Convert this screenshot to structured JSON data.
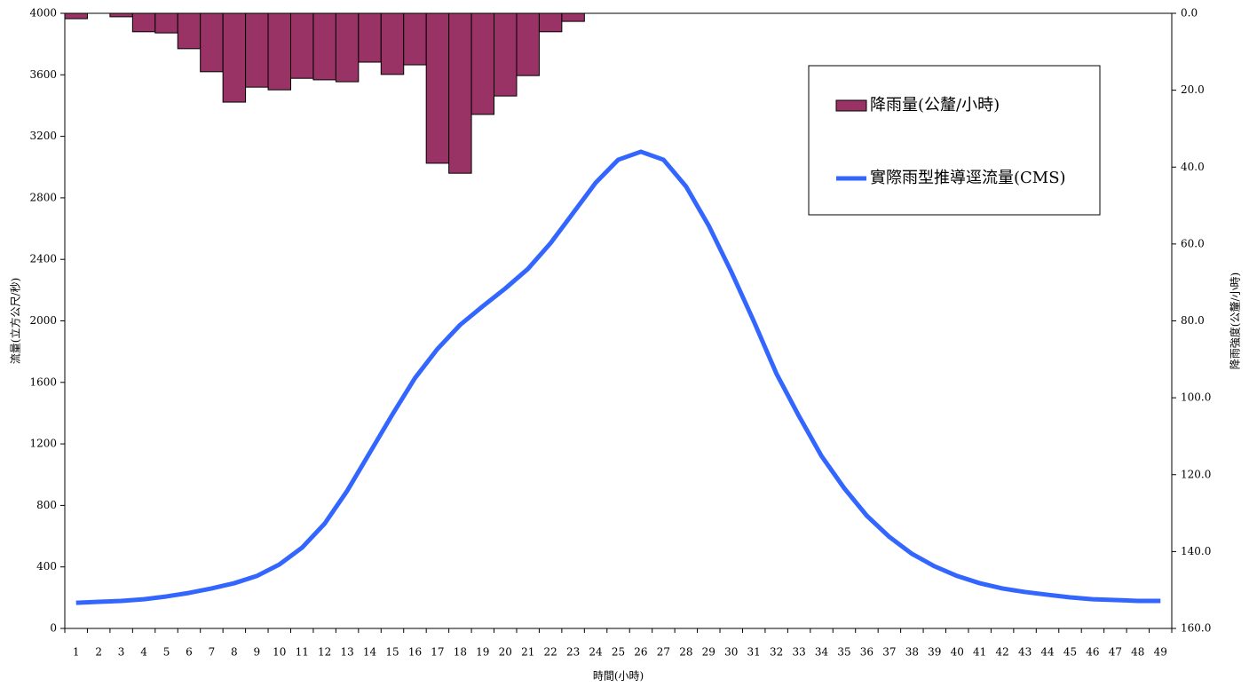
{
  "chart_data": {
    "type": "bar-line",
    "x_label": "時間(小時)",
    "y_label": "流量(立方公尺/秒)",
    "y2_label": "降雨強度(公釐/小時)",
    "categories": [
      "1",
      "2",
      "3",
      "4",
      "5",
      "6",
      "7",
      "8",
      "9",
      "10",
      "11",
      "12",
      "13",
      "14",
      "15",
      "16",
      "17",
      "18",
      "19",
      "20",
      "21",
      "22",
      "23",
      "24",
      "25",
      "26",
      "27",
      "28",
      "29",
      "30",
      "31",
      "32",
      "33",
      "34",
      "35",
      "36",
      "37",
      "38",
      "39",
      "40",
      "41",
      "42",
      "43",
      "44",
      "45",
      "46",
      "47",
      "48",
      "49"
    ],
    "series": [
      {
        "name": "降雨量(公釐/小時)",
        "type": "bar",
        "axis": "y2",
        "color": "#993366",
        "values": [
          1.4,
          0,
          0.9,
          4.8,
          5.1,
          9.2,
          15.2,
          23.1,
          19.2,
          19.9,
          16.9,
          17.3,
          17.8,
          12.7,
          15.9,
          13.4,
          39.0,
          41.6,
          26.3,
          21.5,
          16.2,
          4.8,
          2.1,
          null,
          null,
          null,
          null,
          null,
          null,
          null,
          null,
          null,
          null,
          null,
          null,
          null,
          null,
          null,
          null,
          null,
          null,
          null,
          null,
          null,
          null,
          null,
          null,
          null,
          null
        ]
      },
      {
        "name": "實際雨型推導逕流量(CMS)",
        "type": "line",
        "axis": "y",
        "color": "#3366ff",
        "values": [
          167,
          173,
          179,
          190,
          208,
          231,
          260,
          294,
          341,
          416,
          525,
          681,
          895,
          1143,
          1391,
          1628,
          1818,
          1974,
          2095,
          2211,
          2338,
          2505,
          2701,
          2898,
          3048,
          3100,
          3048,
          2874,
          2620,
          2320,
          1997,
          1657,
          1380,
          1120,
          912,
          733,
          595,
          485,
          404,
          341,
          294,
          260,
          237,
          219,
          202,
          190,
          185,
          179,
          179
        ]
      }
    ],
    "ylim": [
      0,
      4000
    ],
    "yticks": [
      0,
      400,
      800,
      1200,
      1600,
      2000,
      2400,
      2800,
      3200,
      3600,
      4000
    ],
    "y2lim": [
      0,
      160
    ],
    "y2_inverted": true,
    "y2ticks": [
      {
        "value": 0,
        "label": "0.0"
      },
      {
        "value": 20,
        "label": "20.0"
      },
      {
        "value": 40,
        "label": "40.0"
      },
      {
        "value": 60,
        "label": "60.0"
      },
      {
        "value": 80,
        "label": "80.0"
      },
      {
        "value": 100,
        "label": "100.0"
      },
      {
        "value": 120,
        "label": "120.0"
      },
      {
        "value": 140,
        "label": "140.0"
      },
      {
        "value": 160,
        "label": "160.0"
      }
    ],
    "legend": "upper right"
  }
}
